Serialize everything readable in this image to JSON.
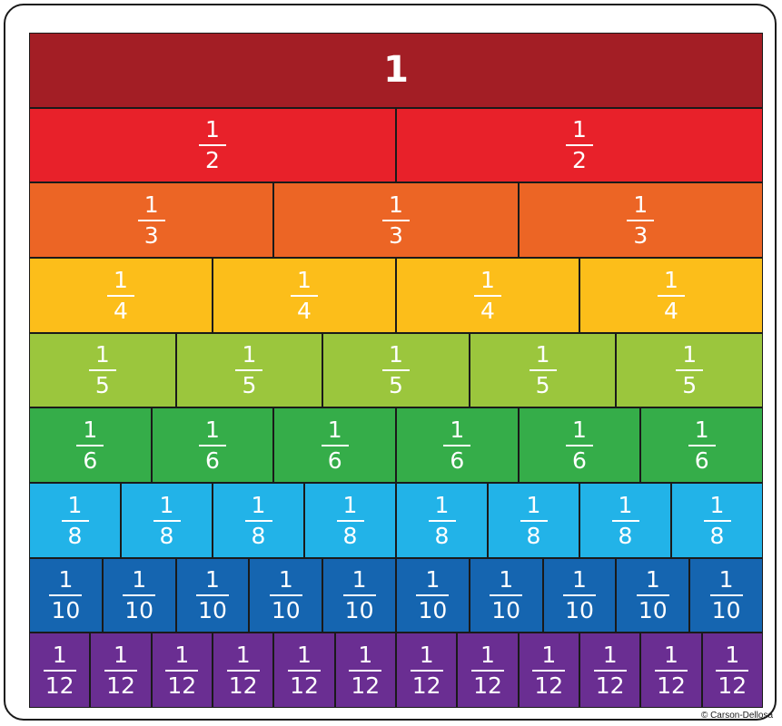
{
  "rows": [
    {
      "denominator": "1",
      "count": 1,
      "color": "#a31e25",
      "whole_label": "1"
    },
    {
      "numerator": "1",
      "denominator": "2",
      "count": 2,
      "color": "#e8212a"
    },
    {
      "numerator": "1",
      "denominator": "3",
      "count": 3,
      "color": "#ec6525"
    },
    {
      "numerator": "1",
      "denominator": "4",
      "count": 4,
      "color": "#fcbe1a"
    },
    {
      "numerator": "1",
      "denominator": "5",
      "count": 5,
      "color": "#9bc63d"
    },
    {
      "numerator": "1",
      "denominator": "6",
      "count": 6,
      "color": "#35ad49"
    },
    {
      "numerator": "1",
      "denominator": "8",
      "count": 8,
      "color": "#22b3e8"
    },
    {
      "numerator": "1",
      "denominator": "10",
      "count": 10,
      "color": "#1565b0"
    },
    {
      "numerator": "1",
      "denominator": "12",
      "count": 12,
      "color": "#6a2e92"
    }
  ],
  "copyright": "© Carson-Dellosa"
}
